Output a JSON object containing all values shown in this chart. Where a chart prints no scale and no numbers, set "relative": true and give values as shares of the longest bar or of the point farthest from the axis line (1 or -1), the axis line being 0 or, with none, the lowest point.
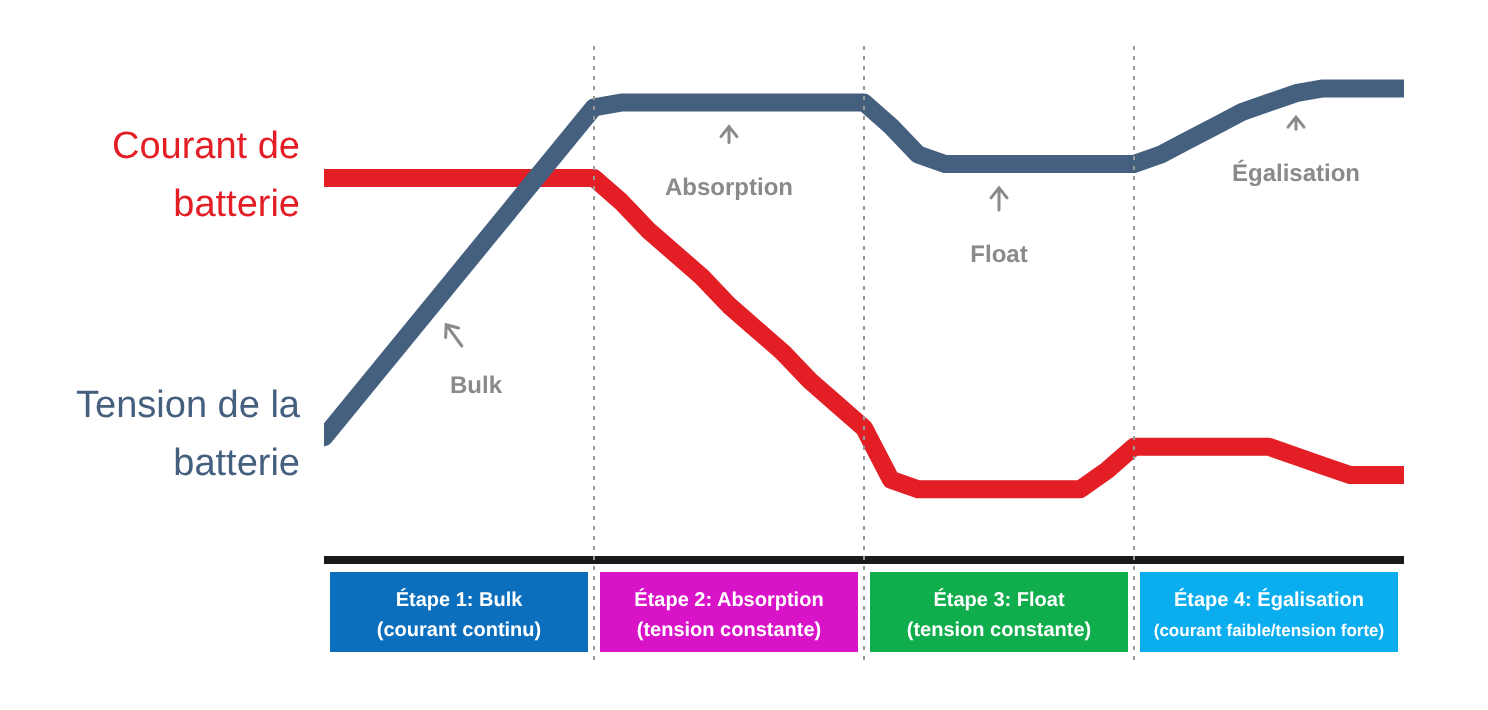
{
  "chart_data": {
    "type": "line",
    "relative": true,
    "line_style": "solid",
    "grid": "x",
    "categories": [
      null,
      null,
      null,
      null,
      null,
      null,
      null,
      null,
      null,
      null,
      null,
      null,
      null,
      null,
      null,
      null,
      null,
      null,
      null,
      null,
      null,
      null,
      null,
      null,
      null,
      null,
      null,
      null,
      null,
      null,
      null,
      null,
      null,
      null,
      null,
      null,
      null,
      null,
      null,
      null,
      null
    ],
    "series": [
      {
        "name": "Courant de batterie",
        "color": "#e31e25",
        "values": [
          0.81,
          0.81,
          0.81,
          0.81,
          0.81,
          0.81,
          0.81,
          0.81,
          0.81,
          0.81,
          0.81,
          0.76,
          0.7,
          0.65,
          0.6,
          0.54,
          0.49,
          0.44,
          0.38,
          0.33,
          0.28,
          0.17,
          0.15,
          0.15,
          0.15,
          0.15,
          0.15,
          0.15,
          0.15,
          0.19,
          0.24,
          0.24,
          0.24,
          0.24,
          0.24,
          0.24,
          0.22,
          0.2,
          0.18,
          0.18,
          0.18
        ]
      },
      {
        "name": "Tension de la batterie",
        "color": "#45607f",
        "values": [
          0.26,
          0.33,
          0.4,
          0.47,
          0.54,
          0.61,
          0.68,
          0.75,
          0.82,
          0.89,
          0.96,
          0.97,
          0.97,
          0.97,
          0.97,
          0.97,
          0.97,
          0.97,
          0.97,
          0.97,
          0.97,
          0.92,
          0.86,
          0.84,
          0.84,
          0.84,
          0.84,
          0.84,
          0.84,
          0.84,
          0.84,
          0.86,
          0.89,
          0.92,
          0.95,
          0.97,
          0.99,
          1.0,
          1.0,
          1.0,
          1.0
        ]
      }
    ],
    "annotations": [
      "Bulk",
      "Absorption",
      "Float",
      "Égalisation",
      "Étape 1: Bulk (courant continu)",
      "Étape 2: Absorption (tension constante)",
      "Étape 3: Float (tension constante)",
      "Étape 4: Égalisation (courant faible/tension forte)"
    ]
  }
}
